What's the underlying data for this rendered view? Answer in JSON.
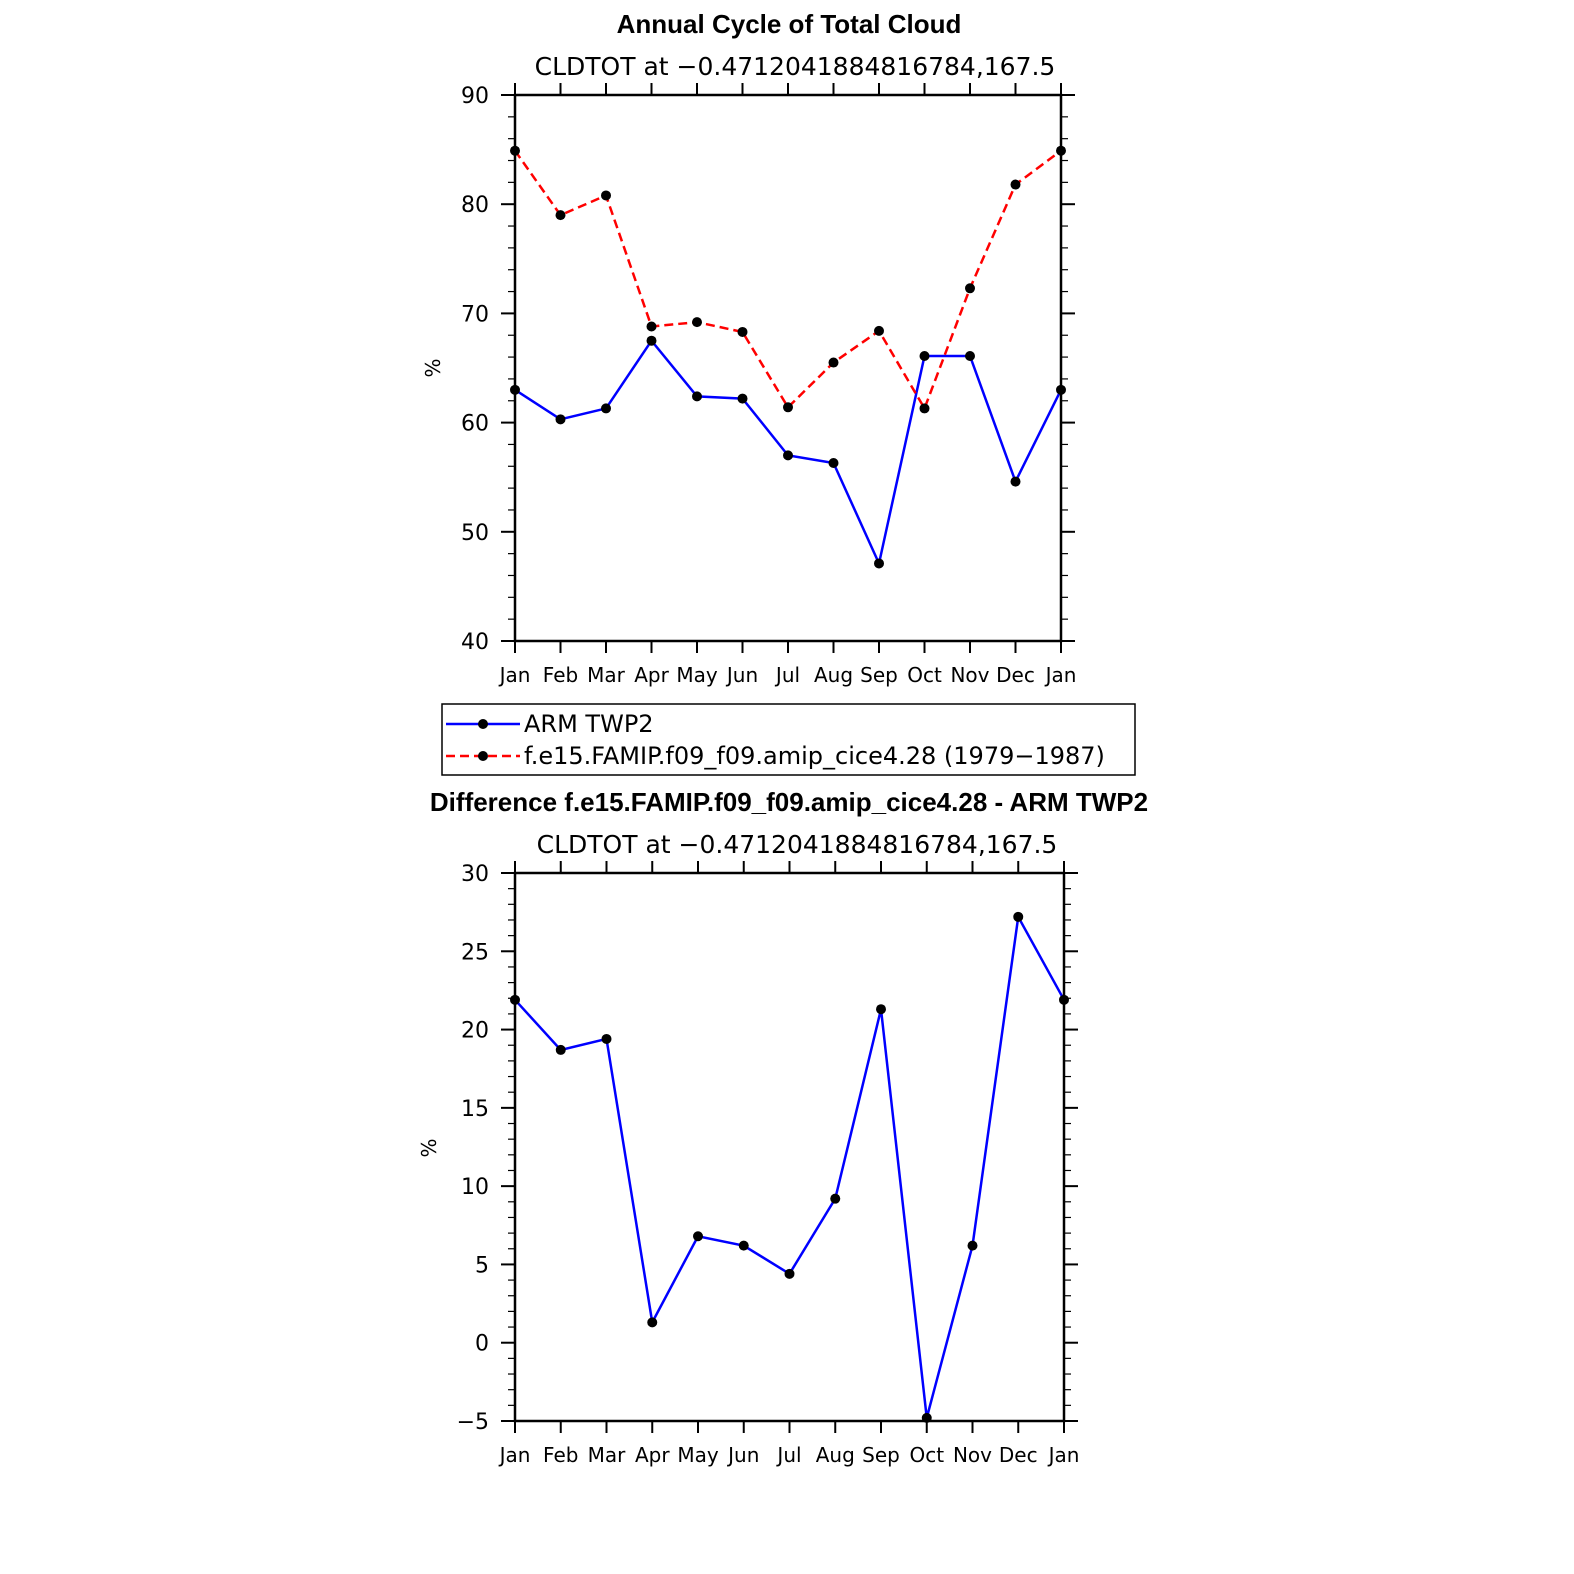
{
  "chart_data": [
    {
      "type": "line",
      "title": "Annual Cycle of Total Cloud",
      "subtitle": "CLDTOT at −0.4712041884816784,167.5",
      "ylabel": "%",
      "ylim": [
        40,
        90
      ],
      "yticks": [
        "90",
        "80",
        "70",
        "60",
        "50",
        "40"
      ],
      "ytick_values": [
        90,
        80,
        70,
        60,
        50,
        40
      ],
      "categories": [
        "Jan",
        "Feb",
        "Mar",
        "Apr",
        "May",
        "Jun",
        "Jul",
        "Aug",
        "Sep",
        "Oct",
        "Nov",
        "Dec",
        "Jan"
      ],
      "series": [
        {
          "name": "ARM TWP2",
          "color": "#0000ff",
          "dash": "solid",
          "values": [
            63.0,
            60.3,
            61.3,
            67.5,
            62.4,
            62.2,
            57.0,
            56.3,
            47.1,
            66.1,
            66.1,
            54.6,
            63.0
          ]
        },
        {
          "name": "f.e15.FAMIP.f09_f09.amip_cice4.28 (1979−1987)",
          "color": "#ff0000",
          "dash": "dashed",
          "values": [
            84.9,
            79.0,
            80.8,
            68.8,
            69.2,
            68.3,
            61.4,
            65.5,
            68.4,
            61.3,
            72.3,
            81.8,
            84.9
          ]
        }
      ],
      "legend": "below"
    },
    {
      "type": "line",
      "title": "Difference f.e15.FAMIP.f09_f09.amip_cice4.28 - ARM TWP2",
      "subtitle": "CLDTOT at −0.4712041884816784,167.5",
      "ylabel": "%",
      "ylim": [
        -5,
        30
      ],
      "yticks": [
        "30",
        "25",
        "20",
        "15",
        "10",
        "5",
        "0",
        "−5"
      ],
      "ytick_values": [
        30,
        25,
        20,
        15,
        10,
        5,
        0,
        -5
      ],
      "categories": [
        "Jan",
        "Feb",
        "Mar",
        "Apr",
        "May",
        "Jun",
        "Jul",
        "Aug",
        "Sep",
        "Oct",
        "Nov",
        "Dec",
        "Jan"
      ],
      "series": [
        {
          "color": "#0000ff",
          "dash": "solid",
          "values": [
            21.9,
            18.7,
            19.4,
            1.3,
            6.8,
            6.2,
            4.4,
            9.2,
            21.3,
            -4.8,
            6.2,
            27.2,
            21.9
          ]
        }
      ]
    }
  ]
}
